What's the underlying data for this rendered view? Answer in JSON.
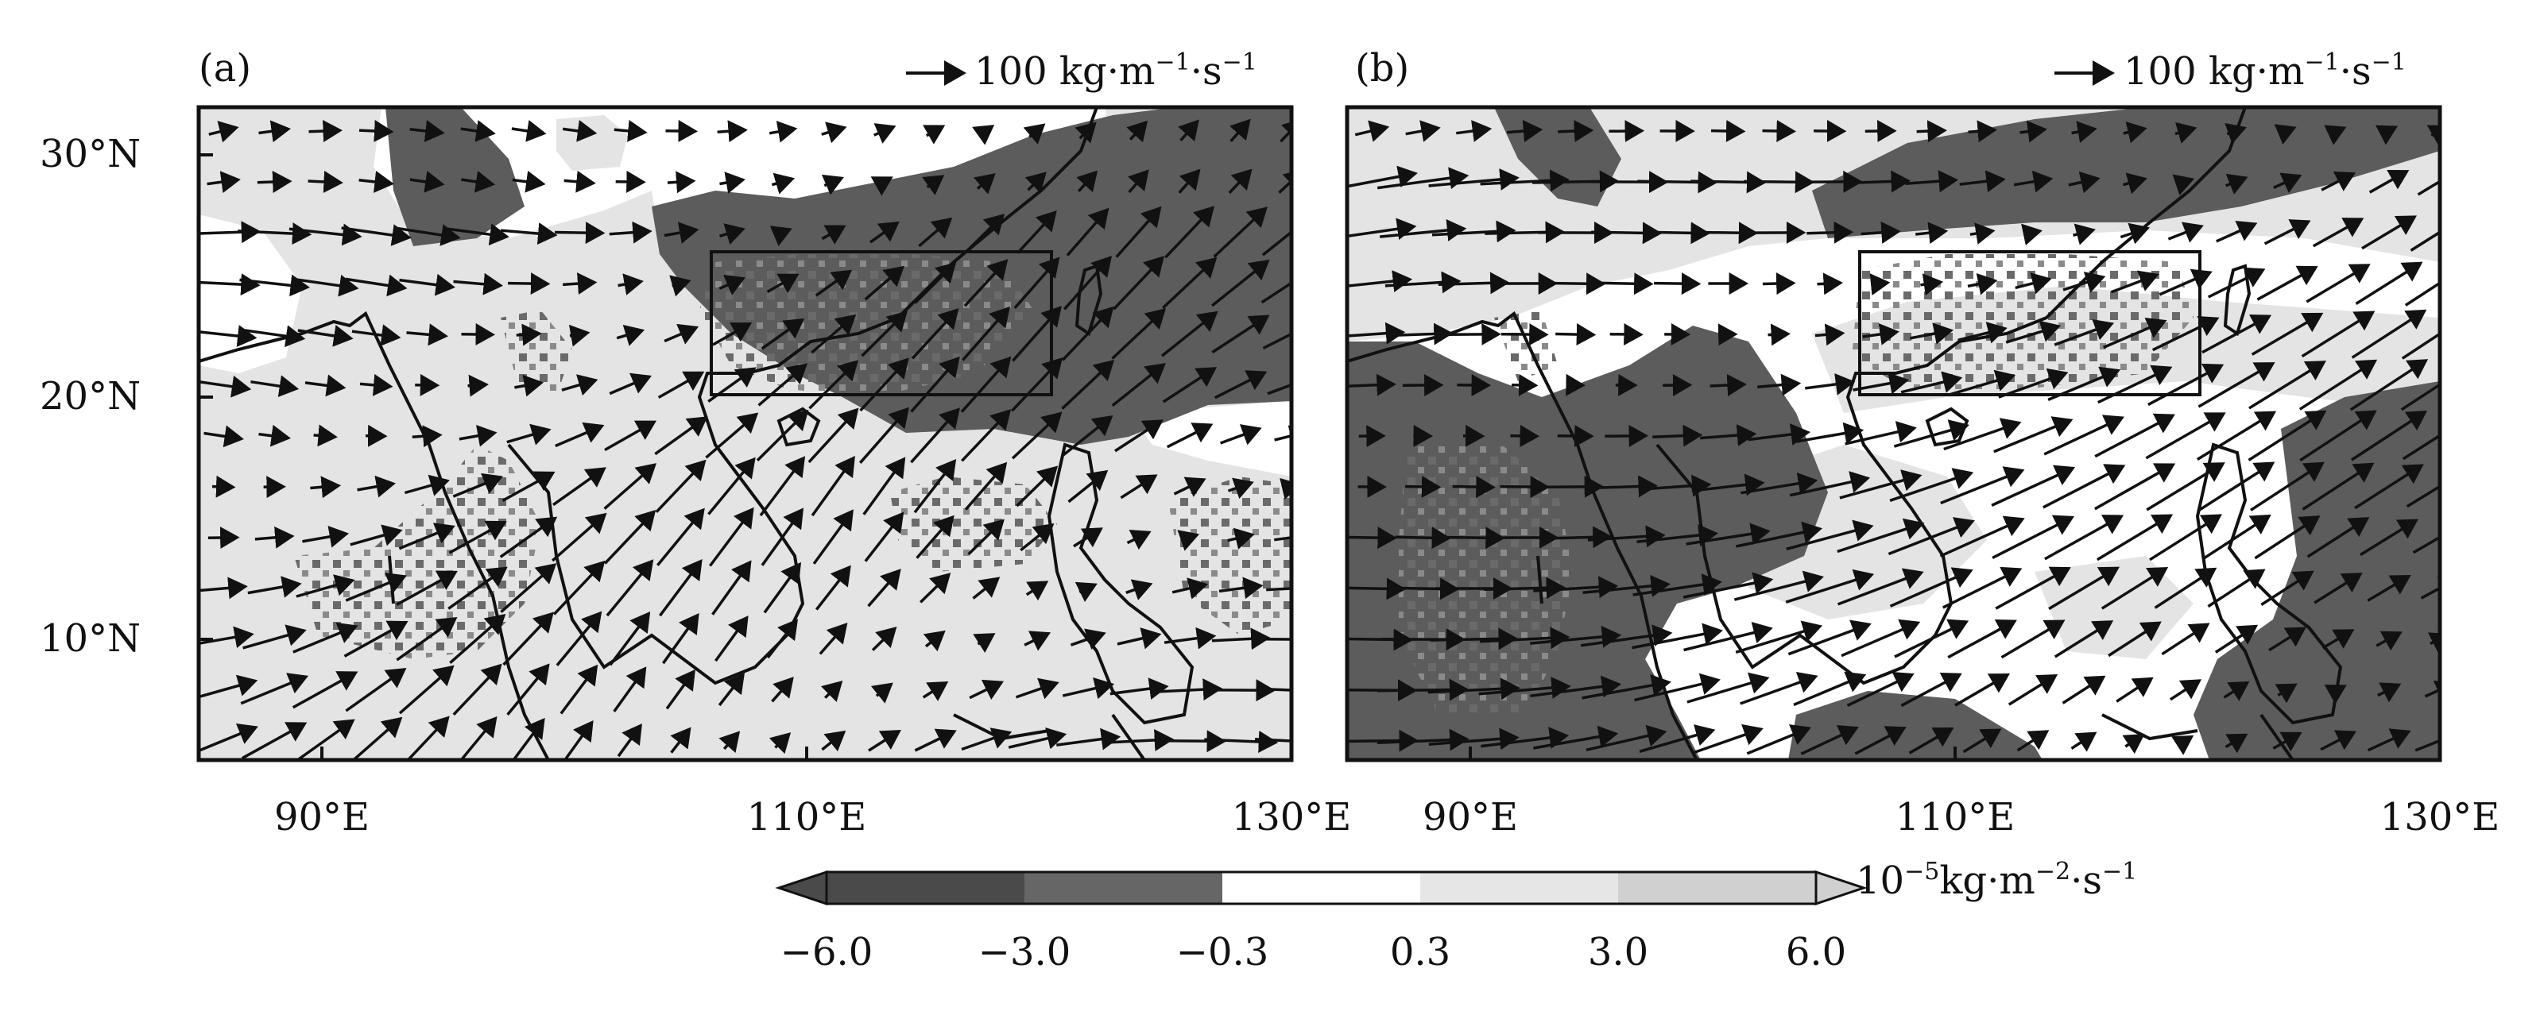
{
  "panels": [
    {
      "id": "a",
      "label": "(a)",
      "scale_arrow": {
        "value_label": "100 kg·m",
        "sup1": "−1",
        "mid": "·s",
        "sup2": "−1"
      },
      "extent": {
        "lon": [
          85,
          130
        ],
        "lat": [
          5,
          32
        ]
      },
      "box": {
        "lon": [
          106,
          120
        ],
        "lat": [
          20,
          26
        ]
      }
    },
    {
      "id": "b",
      "label": "(b)",
      "scale_arrow": {
        "value_label": "100 kg·m",
        "sup1": "−1",
        "mid": "·s",
        "sup2": "−1"
      },
      "extent": {
        "lon": [
          85,
          130
        ],
        "lat": [
          5,
          32
        ]
      },
      "box": {
        "lon": [
          106,
          120
        ],
        "lat": [
          20,
          26
        ]
      }
    }
  ],
  "axes": {
    "lat_ticks": [
      {
        "value": 30,
        "label": "30°N"
      },
      {
        "value": 20,
        "label": "20°N"
      },
      {
        "value": 10,
        "label": "10°N"
      }
    ],
    "lon_ticks": [
      {
        "value": 90,
        "label": "90°E"
      },
      {
        "value": 110,
        "label": "110°E"
      },
      {
        "value": 130,
        "label": "130°E"
      }
    ]
  },
  "colorbar": {
    "unit_base": "10",
    "unit_exp": "−5",
    "unit_rest": "kg·m",
    "unit_exp2": "−2",
    "unit_tail": "·s",
    "unit_exp3": "−1",
    "levels": [
      {
        "label": "−6.0",
        "value": -6.0
      },
      {
        "label": "−3.0",
        "value": -3.0
      },
      {
        "label": "−0.3",
        "value": -0.3
      },
      {
        "label": "0.3",
        "value": 0.3
      },
      {
        "label": "3.0",
        "value": 3.0
      },
      {
        "label": "6.0",
        "value": 6.0
      }
    ],
    "colors": [
      "#4a4a4a",
      "#666666",
      "#ffffff",
      "#e6e6e6",
      "#d0d0d0"
    ]
  }
}
